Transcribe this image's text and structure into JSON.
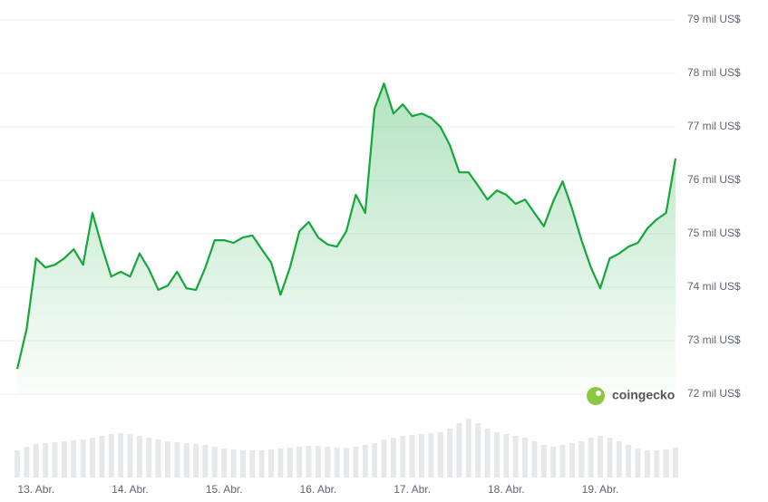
{
  "chart_data": {
    "type": "area",
    "color": "#14a83b",
    "brand": "coingecko",
    "grid": true,
    "xlim": [
      -0.21,
      6.8
    ],
    "xticks": [
      {
        "value": 0,
        "label": "13. Abr."
      },
      {
        "value": 1,
        "label": "14. Abr."
      },
      {
        "value": 2,
        "label": "15. Abr."
      },
      {
        "value": 3,
        "label": "16. Abr."
      },
      {
        "value": 4,
        "label": "17. Abr."
      },
      {
        "value": 5,
        "label": "18. Abr."
      },
      {
        "value": 6,
        "label": "19. Abr."
      }
    ],
    "ylim": [
      72000,
      79000
    ],
    "yticks": [
      {
        "value": 72000,
        "label": "72 mil US$"
      },
      {
        "value": 73000,
        "label": "73 mil US$"
      },
      {
        "value": 74000,
        "label": "74 mil US$"
      },
      {
        "value": 75000,
        "label": "75 mil US$"
      },
      {
        "value": 76000,
        "label": "76 mil US$"
      },
      {
        "value": 77000,
        "label": "77 mil US$"
      },
      {
        "value": 78000,
        "label": "78 mil US$"
      },
      {
        "value": 79000,
        "label": "79 mil US$"
      }
    ],
    "x": [
      -0.2,
      -0.1,
      0.0,
      0.1,
      0.2,
      0.3,
      0.4,
      0.5,
      0.6,
      0.7,
      0.8,
      0.9,
      1.0,
      1.1,
      1.2,
      1.3,
      1.4,
      1.5,
      1.6,
      1.7,
      1.8,
      1.9,
      2.0,
      2.1,
      2.2,
      2.3,
      2.4,
      2.5,
      2.6,
      2.7,
      2.8,
      2.9,
      3.0,
      3.1,
      3.2,
      3.3,
      3.4,
      3.5,
      3.6,
      3.7,
      3.8,
      3.9,
      4.0,
      4.1,
      4.2,
      4.3,
      4.4,
      4.5,
      4.6,
      4.7,
      4.8,
      4.9,
      5.0,
      5.1,
      5.2,
      5.3,
      5.4,
      5.5,
      5.6,
      5.7,
      5.8,
      5.9,
      6.0,
      6.1,
      6.2,
      6.3,
      6.4,
      6.5,
      6.6,
      6.7,
      6.8
    ],
    "values": [
      72470,
      73220,
      74540,
      74370,
      74420,
      74540,
      74710,
      74420,
      75390,
      74760,
      74200,
      74290,
      74200,
      74630,
      74340,
      73950,
      74030,
      74290,
      73980,
      73950,
      74370,
      74880,
      74880,
      74830,
      74930,
      74970,
      74710,
      74460,
      73860,
      74370,
      75050,
      75220,
      74930,
      74800,
      74760,
      75050,
      75730,
      75390,
      77340,
      77810,
      77250,
      77420,
      77200,
      77250,
      77170,
      77000,
      76660,
      76150,
      76150,
      75900,
      75640,
      75810,
      75730,
      75560,
      75640,
      75390,
      75140,
      75610,
      75980,
      75470,
      74880,
      74370,
      73980,
      74540,
      74630,
      74760,
      74830,
      75100,
      75270,
      75390,
      76410
    ],
    "volume": [
      30,
      34,
      37,
      38,
      39,
      40,
      41,
      42,
      44,
      46,
      48,
      49,
      48,
      46,
      44,
      42,
      40,
      39,
      38,
      37,
      36,
      34,
      32,
      31,
      30,
      30,
      30,
      31,
      32,
      33,
      34,
      35,
      35,
      34,
      33,
      33,
      34,
      36,
      38,
      42,
      44,
      46,
      47,
      48,
      49,
      50,
      54,
      60,
      65,
      60,
      54,
      50,
      48,
      46,
      44,
      40,
      36,
      34,
      36,
      38,
      40,
      44,
      46,
      44,
      40,
      36,
      32,
      30,
      30,
      31,
      33
    ]
  }
}
